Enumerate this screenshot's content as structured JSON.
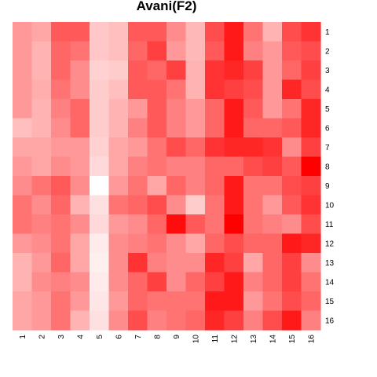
{
  "chart_data": {
    "type": "heatmap",
    "title": "Avani(F2)",
    "rows": [
      "1",
      "2",
      "3",
      "4",
      "5",
      "6",
      "7",
      "8",
      "9",
      "10",
      "11",
      "12",
      "13",
      "14",
      "15",
      "16"
    ],
    "columns": [
      "1",
      "2",
      "3",
      "4",
      "5",
      "6",
      "7",
      "8",
      "9",
      "10",
      "11",
      "12",
      "13",
      "14",
      "15",
      "16"
    ],
    "value_range": [
      0,
      1
    ],
    "colors": {
      "low": "#ffffff",
      "high": "#ff0000"
    },
    "values": [
      [
        0.4,
        0.35,
        0.65,
        0.65,
        0.22,
        0.25,
        0.65,
        0.65,
        0.45,
        0.28,
        0.7,
        0.9,
        0.55,
        0.3,
        0.7,
        0.8
      ],
      [
        0.4,
        0.3,
        0.6,
        0.55,
        0.22,
        0.25,
        0.6,
        0.75,
        0.4,
        0.28,
        0.65,
        0.9,
        0.5,
        0.4,
        0.65,
        0.7
      ],
      [
        0.4,
        0.3,
        0.6,
        0.45,
        0.18,
        0.2,
        0.65,
        0.6,
        0.75,
        0.3,
        0.8,
        0.85,
        0.75,
        0.4,
        0.6,
        0.75
      ],
      [
        0.4,
        0.32,
        0.55,
        0.45,
        0.2,
        0.25,
        0.65,
        0.65,
        0.55,
        0.3,
        0.8,
        0.75,
        0.7,
        0.4,
        0.85,
        0.7
      ],
      [
        0.4,
        0.3,
        0.5,
        0.6,
        0.2,
        0.3,
        0.4,
        0.65,
        0.5,
        0.4,
        0.6,
        0.9,
        0.65,
        0.4,
        0.55,
        0.85
      ],
      [
        0.25,
        0.3,
        0.45,
        0.6,
        0.2,
        0.3,
        0.5,
        0.65,
        0.5,
        0.4,
        0.6,
        0.9,
        0.6,
        0.6,
        0.65,
        0.85
      ],
      [
        0.35,
        0.35,
        0.4,
        0.4,
        0.18,
        0.35,
        0.4,
        0.55,
        0.7,
        0.6,
        0.8,
        0.85,
        0.85,
        0.8,
        0.45,
        0.75
      ],
      [
        0.4,
        0.35,
        0.45,
        0.4,
        0.15,
        0.35,
        0.5,
        0.55,
        0.5,
        0.5,
        0.6,
        0.6,
        0.7,
        0.75,
        0.65,
        1.0
      ],
      [
        0.45,
        0.55,
        0.65,
        0.45,
        0.0,
        0.4,
        0.55,
        0.35,
        0.6,
        0.5,
        0.6,
        0.9,
        0.55,
        0.55,
        0.7,
        0.75
      ],
      [
        0.55,
        0.45,
        0.6,
        0.3,
        0.12,
        0.55,
        0.6,
        0.7,
        0.45,
        0.2,
        0.55,
        0.9,
        0.55,
        0.4,
        0.65,
        0.8
      ],
      [
        0.55,
        0.5,
        0.55,
        0.45,
        0.15,
        0.4,
        0.45,
        0.6,
        0.95,
        0.65,
        0.55,
        1.0,
        0.55,
        0.5,
        0.45,
        0.7
      ],
      [
        0.4,
        0.45,
        0.55,
        0.35,
        0.08,
        0.45,
        0.5,
        0.55,
        0.45,
        0.35,
        0.6,
        0.7,
        0.6,
        0.6,
        0.9,
        0.85
      ],
      [
        0.3,
        0.4,
        0.6,
        0.35,
        0.06,
        0.45,
        0.8,
        0.5,
        0.45,
        0.45,
        0.85,
        0.75,
        0.35,
        0.6,
        0.75,
        0.45
      ],
      [
        0.3,
        0.45,
        0.5,
        0.45,
        0.08,
        0.45,
        0.6,
        0.75,
        0.45,
        0.6,
        0.75,
        0.9,
        0.5,
        0.6,
        0.75,
        0.55
      ],
      [
        0.35,
        0.4,
        0.55,
        0.4,
        0.1,
        0.4,
        0.6,
        0.55,
        0.55,
        0.55,
        0.9,
        0.9,
        0.4,
        0.55,
        0.7,
        0.6
      ],
      [
        0.35,
        0.4,
        0.55,
        0.3,
        0.12,
        0.45,
        0.7,
        0.5,
        0.55,
        0.6,
        0.85,
        0.75,
        0.5,
        0.7,
        0.9,
        0.5
      ]
    ]
  }
}
